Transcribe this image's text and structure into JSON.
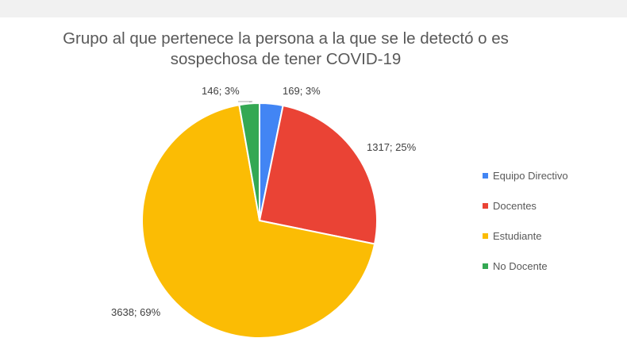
{
  "chart_data": {
    "type": "pie",
    "title_lines": [
      "Grupo al que pertenece la persona a la que se le detectó o es",
      "sospechosa de tener COVID-19"
    ],
    "slices": [
      {
        "name": "Equipo Directivo",
        "value": 169,
        "percent": 3,
        "label": "169; 3%",
        "color": "#4285f4"
      },
      {
        "name": "Docentes",
        "value": 1317,
        "percent": 25,
        "label": "1317; 25%",
        "color": "#ea4335"
      },
      {
        "name": "Estudiante",
        "value": 3638,
        "percent": 69,
        "label": "3638; 69%",
        "color": "#fbbc04"
      },
      {
        "name": "No Docente",
        "value": 146,
        "percent": 3,
        "label": "146; 3%",
        "color": "#34a853"
      }
    ],
    "legend_position": "right"
  }
}
